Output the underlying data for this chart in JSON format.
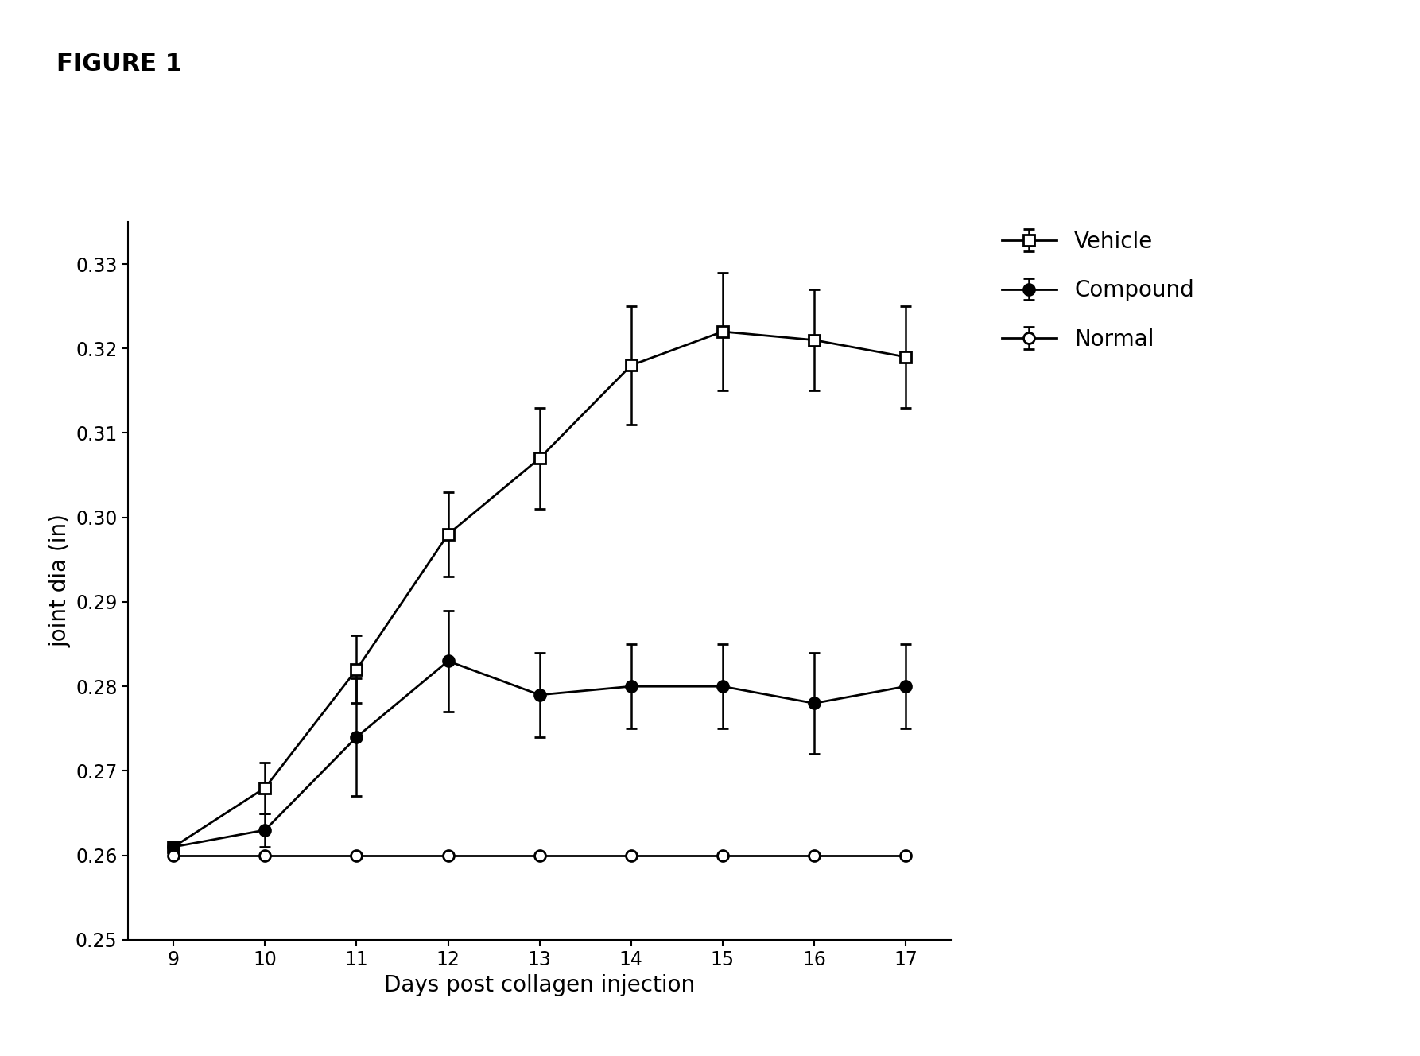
{
  "title": "FIGURE 1",
  "xlabel": "Days post collagen injection",
  "ylabel": "joint dia (in)",
  "x": [
    9,
    10,
    11,
    12,
    13,
    14,
    15,
    16,
    17
  ],
  "vehicle_y": [
    0.261,
    0.268,
    0.282,
    0.298,
    0.307,
    0.318,
    0.322,
    0.321,
    0.319
  ],
  "vehicle_err": [
    0.0,
    0.003,
    0.004,
    0.005,
    0.006,
    0.007,
    0.007,
    0.006,
    0.006
  ],
  "compound_y": [
    0.261,
    0.263,
    0.274,
    0.283,
    0.279,
    0.28,
    0.28,
    0.278,
    0.28
  ],
  "compound_err": [
    0.0,
    0.002,
    0.007,
    0.006,
    0.005,
    0.005,
    0.005,
    0.006,
    0.005
  ],
  "normal_y": [
    0.26,
    0.26,
    0.26,
    0.26,
    0.26,
    0.26,
    0.26,
    0.26,
    0.26
  ],
  "normal_err": [
    0.0,
    0.0,
    0.0,
    0.0,
    0.0,
    0.0,
    0.0,
    0.0,
    0.0
  ],
  "ylim": [
    0.25,
    0.335
  ],
  "yticks": [
    0.25,
    0.26,
    0.27,
    0.28,
    0.29,
    0.3,
    0.31,
    0.32,
    0.33
  ],
  "xticks": [
    9,
    10,
    11,
    12,
    13,
    14,
    15,
    16,
    17
  ],
  "legend_labels": [
    "Vehicle",
    "Compound",
    "Normal"
  ],
  "line_color": "#000000",
  "background_color": "#ffffff",
  "title_fontsize": 22,
  "label_fontsize": 20,
  "tick_fontsize": 17,
  "legend_fontsize": 20
}
